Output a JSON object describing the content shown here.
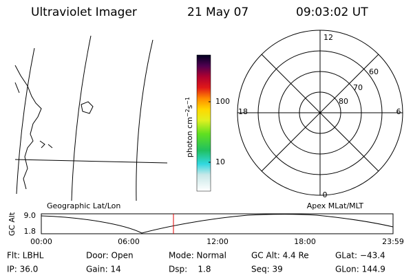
{
  "header": {
    "title": "Ultraviolet Imager",
    "date": "21 May 07",
    "time": "09:03:02 UT"
  },
  "colorbar": {
    "label_parts": [
      "photon cm",
      "−2",
      "s",
      "−1"
    ],
    "ticks": [
      "100",
      "10"
    ]
  },
  "polar": {
    "labels": {
      "top": "12",
      "bottom": "0",
      "left": "18",
      "right": "6"
    },
    "rings": [
      "60",
      "70",
      "80"
    ]
  },
  "altitude": {
    "left_label": "Geographic Lat/Lon",
    "right_label": "Apex MLat/MLT",
    "ylabel": "GC Alt",
    "yticks": [
      "9.0",
      "1.8"
    ],
    "times": [
      "00:00",
      "06:00",
      "12:00",
      "18:00",
      "23:59"
    ]
  },
  "footer": {
    "rows": [
      [
        "Flt: LBHL",
        "Door: Open",
        "Mode: Normal",
        "GC Alt: 4.4 Re",
        "GLat: −43.4"
      ],
      [
        "IP: 36.0",
        "Gain: 14",
        "Dsp:    1.8",
        "Seq: 39",
        "GLon: 144.9"
      ]
    ]
  }
}
